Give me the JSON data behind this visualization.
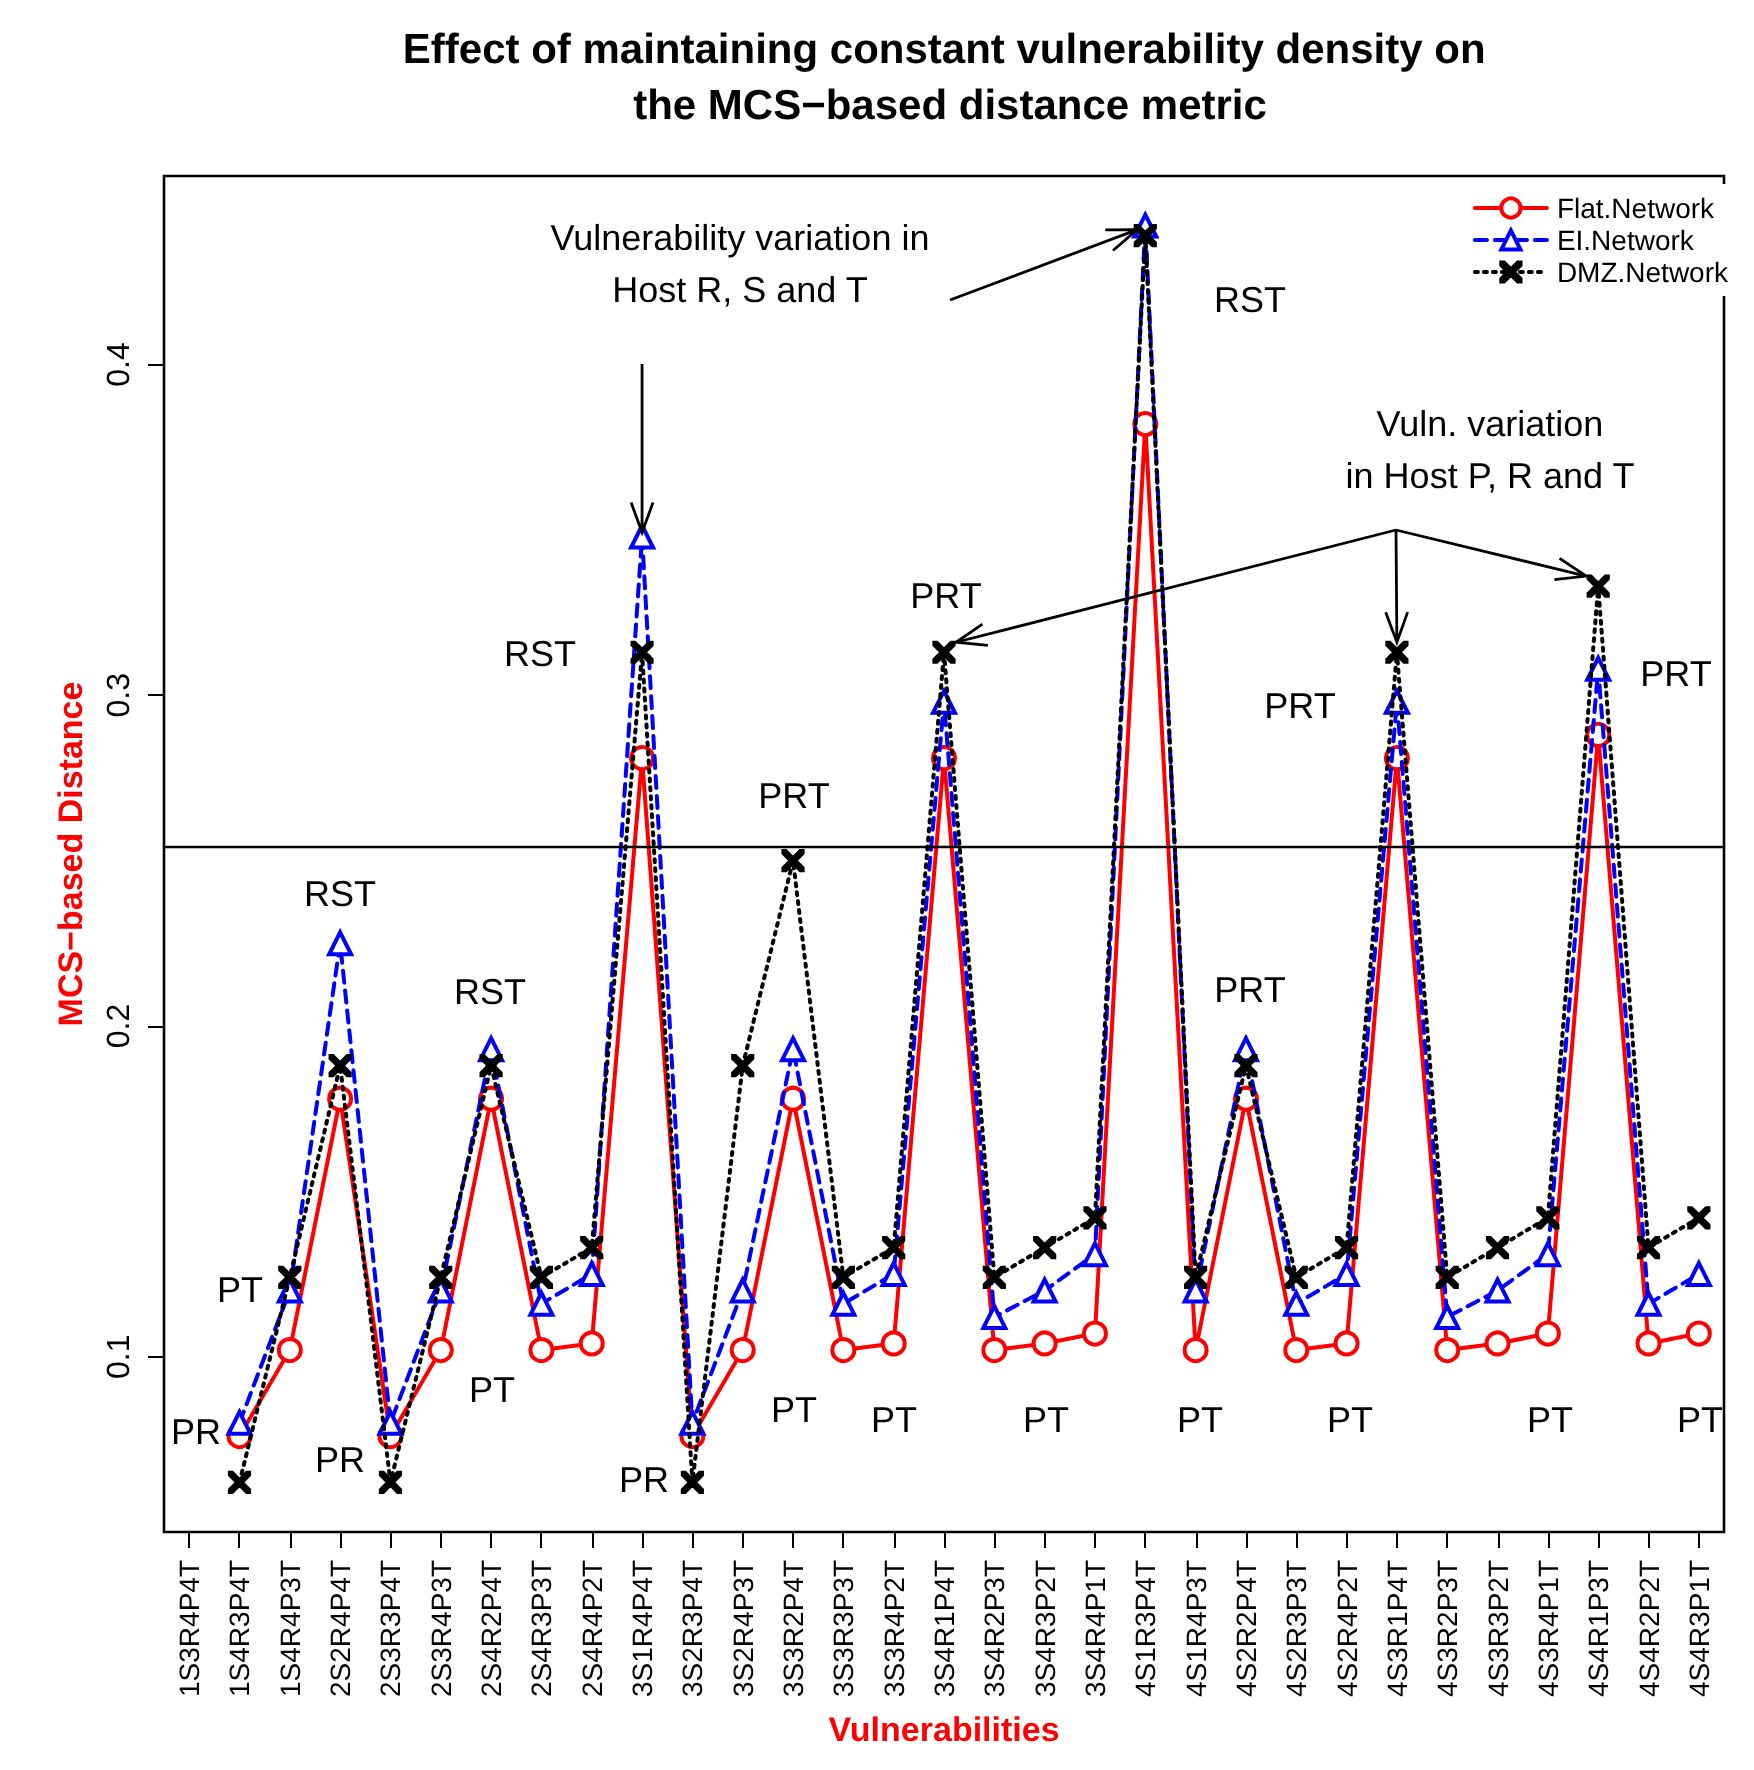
{
  "chart_data": {
    "type": "line",
    "title": "Effect of maintaining constant vulnerability density on the MCS−based distance metric",
    "xlabel": "Vulnerabilities",
    "ylabel": "MCS−based Distance",
    "categories": [
      "1S3R4P4T",
      "1S4R3P4T",
      "1S4R4P3T",
      "2S2R4P4T",
      "2S3R3P4T",
      "2S3R4P3T",
      "2S4R2P4T",
      "2S4R3P3T",
      "2S4R4P2T",
      "3S1R4P4T",
      "3S2R3P4T",
      "3S2R4P3T",
      "3S3R2P4T",
      "3S3R3P3T",
      "3S3R4P2T",
      "3S4R1P4T",
      "3S4R2P3T",
      "3S4R3P2T",
      "3S4R4P1T",
      "4S1R3P4T",
      "4S1R4P3T",
      "4S2R2P4T",
      "4S2R3P3T",
      "4S2R4P2T",
      "4S3R1P4T",
      "4S3R2P3T",
      "4S3R3P2T",
      "4S3R4P1T",
      "4S4R1P3T",
      "4S4R2P2T",
      "4S4R3P1T"
    ],
    "series": [
      {
        "name": "Flat.Network",
        "color": "#ff0000",
        "marker": "circle",
        "line_style": "solid",
        "values": [
          null,
          0.076,
          0.102,
          0.178,
          0.076,
          0.102,
          0.178,
          0.102,
          0.104,
          0.281,
          0.076,
          0.102,
          0.178,
          0.102,
          0.104,
          0.281,
          0.102,
          0.104,
          0.107,
          0.382,
          0.102,
          0.178,
          0.102,
          0.104,
          0.281,
          0.102,
          0.104,
          0.107,
          0.288,
          0.104,
          0.107
        ]
      },
      {
        "name": "EI.Network",
        "color": "#0000ff",
        "marker": "triangle",
        "line_style": "dashed",
        "values": [
          null,
          0.08,
          0.12,
          0.225,
          0.08,
          0.12,
          0.193,
          0.116,
          0.125,
          0.348,
          0.08,
          0.12,
          0.193,
          0.116,
          0.125,
          0.298,
          0.112,
          0.12,
          0.131,
          0.442,
          0.12,
          0.193,
          0.116,
          0.125,
          0.298,
          0.112,
          0.12,
          0.131,
          0.308,
          0.116,
          0.125
        ]
      },
      {
        "name": "DMZ.Network",
        "color": "#000000",
        "marker": "cross",
        "line_style": "dotted",
        "values": [
          null,
          0.062,
          0.124,
          0.188,
          0.062,
          0.124,
          0.188,
          0.124,
          0.133,
          0.313,
          0.062,
          0.188,
          0.25,
          0.124,
          0.133,
          0.313,
          0.124,
          0.133,
          0.142,
          0.439,
          0.124,
          0.188,
          0.124,
          0.133,
          0.313,
          0.124,
          0.133,
          0.142,
          0.333,
          0.133,
          0.142
        ]
      }
    ],
    "ylim": [
      0.047,
      0.457
    ],
    "yticks": [
      0.1,
      0.2,
      0.3,
      0.4
    ],
    "grid": false,
    "legend": "top right",
    "ref_lines": [
      {
        "axis": "y",
        "value": 0.254,
        "color": "#000000",
        "line_style": "solid"
      }
    ],
    "annotations": [
      {
        "text": "Vulnerability variation in\nHost R, S and T",
        "x": "4S1R3P4T",
        "y": 0.442
      },
      {
        "text": "Vuln. variation\nin Host P, R and T",
        "x": "3S4R1P4T",
        "y": 0.313
      },
      "PR",
      "PT",
      "RST",
      "PR",
      "PT",
      "RST",
      "RST",
      "PR",
      "PRT",
      "PT",
      "PT",
      "PRT",
      "PT",
      "RST",
      "PRT",
      "PRT",
      "PT",
      "PT",
      "PT",
      "PRT",
      "PT"
    ]
  }
}
